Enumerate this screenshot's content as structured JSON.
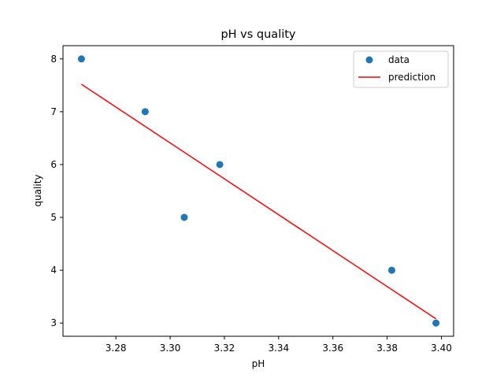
{
  "chart_data": {
    "type": "scatter",
    "title": "pH vs quality",
    "xlabel": "pH",
    "ylabel": "quality",
    "xlim": [
      3.2605,
      3.4045
    ],
    "ylim": [
      2.75,
      8.25
    ],
    "xticks": [
      3.28,
      3.3,
      3.32,
      3.34,
      3.36,
      3.38,
      3.4
    ],
    "xtick_labels": [
      "3.28",
      "3.30",
      "3.32",
      "3.34",
      "3.36",
      "3.38",
      "3.40"
    ],
    "yticks": [
      3,
      4,
      5,
      6,
      7,
      8
    ],
    "ytick_labels": [
      "3",
      "4",
      "5",
      "6",
      "7",
      "8"
    ],
    "grid": false,
    "legend_position": "top-right",
    "series": [
      {
        "name": "data",
        "kind": "scatter",
        "color": "#1f77b4",
        "x": [
          3.2673,
          3.2908,
          3.3052,
          3.3183,
          3.3817,
          3.398
        ],
        "y": [
          8,
          7,
          5,
          6,
          4,
          3
        ]
      },
      {
        "name": "prediction",
        "kind": "line",
        "color": "#ff0000",
        "x": [
          3.2673,
          3.398
        ],
        "y": [
          7.52,
          3.08
        ]
      }
    ]
  }
}
